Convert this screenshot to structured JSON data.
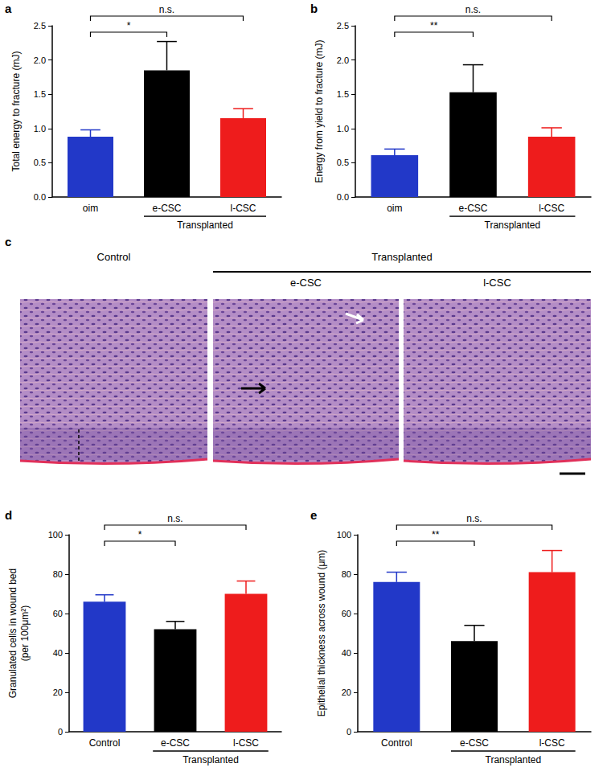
{
  "chart_data": [
    {
      "type": "bar",
      "panel_label": "a",
      "ylabel": "Total energy to fracture (mJ)",
      "categories": [
        "oim",
        "e-CSC",
        "l-CSC"
      ],
      "values": [
        0.88,
        1.85,
        1.15
      ],
      "errors": [
        0.1,
        0.42,
        0.14
      ],
      "colors": [
        "#2238c8",
        "#000000",
        "#ee1c1c"
      ],
      "ylim": [
        0,
        2.5
      ],
      "yticks": [
        {
          "value": 0,
          "label": "0.0"
        },
        {
          "value": 0.5,
          "label": "0.5"
        },
        {
          "value": 1,
          "label": "1.0"
        },
        {
          "value": 1.5,
          "label": "1.5"
        },
        {
          "value": 2,
          "label": "2.0"
        },
        {
          "value": 2.5,
          "label": "2.5"
        }
      ],
      "group_label": "Transplanted",
      "group_categories": [
        "e-CSC",
        "l-CSC"
      ],
      "comparisons": [
        {
          "from": "oim",
          "to": "e-CSC",
          "label": "*"
        },
        {
          "from": "oim",
          "to": "l-CSC",
          "label": "n.s."
        }
      ]
    },
    {
      "type": "bar",
      "panel_label": "b",
      "ylabel": "Energy from yield to fracture (mJ)",
      "categories": [
        "oim",
        "e-CSC",
        "l-CSC"
      ],
      "values": [
        0.61,
        1.53,
        0.88
      ],
      "errors": [
        0.09,
        0.4,
        0.13
      ],
      "colors": [
        "#2238c8",
        "#000000",
        "#ee1c1c"
      ],
      "ylim": [
        0,
        2.5
      ],
      "yticks": [
        {
          "value": 0,
          "label": "0.0"
        },
        {
          "value": 0.5,
          "label": "0.5"
        },
        {
          "value": 1,
          "label": "1.0"
        },
        {
          "value": 1.5,
          "label": "1.5"
        },
        {
          "value": 2,
          "label": "2.0"
        },
        {
          "value": 2.5,
          "label": "2.5"
        }
      ],
      "group_label": "Transplanted",
      "group_categories": [
        "e-CSC",
        "l-CSC"
      ],
      "comparisons": [
        {
          "from": "oim",
          "to": "e-CSC",
          "label": "**"
        },
        {
          "from": "oim",
          "to": "l-CSC",
          "label": "n.s."
        }
      ]
    },
    {
      "type": "bar",
      "panel_label": "d",
      "ylabel": "Granulated cells in wound bed\n(per 100μm²)",
      "categories": [
        "Control",
        "e-CSC",
        "l-CSC"
      ],
      "values": [
        66,
        52,
        70
      ],
      "errors": [
        3.5,
        4,
        6.5
      ],
      "colors": [
        "#2238c8",
        "#000000",
        "#ee1c1c"
      ],
      "ylim": [
        0,
        100
      ],
      "yticks": [
        0,
        20,
        40,
        60,
        80,
        100
      ],
      "group_label": "Transplanted",
      "group_categories": [
        "e-CSC",
        "l-CSC"
      ],
      "comparisons": [
        {
          "from": "Control",
          "to": "e-CSC",
          "label": "*"
        },
        {
          "from": "Control",
          "to": "l-CSC",
          "label": "n.s."
        }
      ]
    },
    {
      "type": "bar",
      "panel_label": "e",
      "ylabel": "Epithelial thickness across wound (μm)",
      "categories": [
        "Control",
        "e-CSC",
        "l-CSC"
      ],
      "values": [
        76,
        46,
        81
      ],
      "errors": [
        5,
        8,
        11
      ],
      "colors": [
        "#2238c8",
        "#000000",
        "#ee1c1c"
      ],
      "ylim": [
        0,
        100
      ],
      "yticks": [
        0,
        20,
        40,
        60,
        80,
        100
      ],
      "group_label": "Transplanted",
      "group_categories": [
        "e-CSC",
        "l-CSC"
      ],
      "comparisons": [
        {
          "from": "Control",
          "to": "e-CSC",
          "label": "**"
        },
        {
          "from": "Control",
          "to": "l-CSC",
          "label": "n.s."
        }
      ]
    }
  ],
  "image_panel": {
    "panel_label": "c",
    "titles": [
      "Control",
      "e-CSC",
      "l-CSC"
    ],
    "group_label": "Transplanted",
    "group_titles": [
      "e-CSC",
      "l-CSC"
    ]
  }
}
